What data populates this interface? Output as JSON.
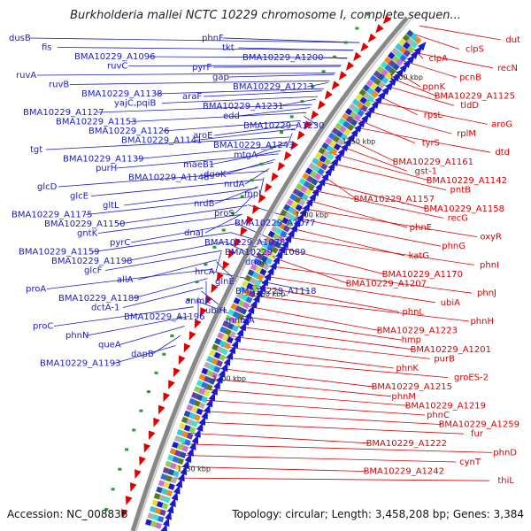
{
  "header": {
    "title": "Burkholderia mallei NCTC 10229 chromosome I, complete sequen..."
  },
  "footer": {
    "accession": "Accession: NC_008836",
    "summary": "Topology: circular; Length: 3,458,208 bp; Genes: 3,384"
  },
  "colors": {
    "left_genes": "#1a1acc",
    "right_genes": "#e00000",
    "ring": "#888888",
    "ticks": "#333333"
  },
  "ticks": [
    "1100 kbp",
    "1150 kbp",
    "1200 kbp",
    "1250 kbp",
    "1300 kbp",
    "1350 kbp"
  ],
  "left_labels": [
    "dusB",
    "fis",
    "BMA10229_A1096",
    "ruvC",
    "ruvA",
    "ruvB",
    "BMA10229_A1138",
    "yajC,pqiB",
    "BMA10229_A1127",
    "BMA10229_A1153",
    "BMA10229_A1126",
    "BMA10229_A1141",
    "tgt",
    "BMA10229_A1139",
    "purH",
    "BMA10229_A1148",
    "glcD",
    "glcE",
    "gltL",
    "BMA10229_A1175",
    "BMA10229_A1150",
    "gntK",
    "pyrC",
    "BMA10229_A1159",
    "BMA10229_A1198",
    "glcF",
    "allA",
    "proA",
    "BMA10229_A1189",
    "dctA-1",
    "BMA10229_A1196",
    "proC",
    "phnN",
    "queA",
    "dapB",
    "BMA10229_A1193",
    "phnF",
    "tkt",
    "BMA10229_A1200",
    "pyrF",
    "gap",
    "BMA10229_A1213",
    "araF",
    "BMA10229_A1231",
    "edd",
    "BMA10229_A1230",
    "aroE",
    "BMA10229_A1243",
    "mtgA",
    "maeB1",
    "dgoK",
    "nrdA",
    "mpl",
    "nrdB",
    "proS",
    "BMA10229_A1077",
    "dnaJ",
    "BMA10229_A1078",
    "BMA10229_A1089",
    "dnaK",
    "hrcA",
    "glnE",
    "BMA10229_A1118",
    "anmK",
    "ubiH",
    "mnmA"
  ],
  "right_labels": [
    "dut",
    "clpS",
    "clpA",
    "recN",
    "pcnB",
    "ppnK",
    "BMA10229_A1125",
    "tldD",
    "rpsL",
    "aroG",
    "rplM",
    "tyrS",
    "dtd",
    "BMA10229_A1161",
    "gst-1",
    "BMA10229_A1142",
    "pntB",
    "BMA10229_A1157",
    "BMA10229_A1158",
    "recG",
    "phnE",
    "oxyR",
    "phnG",
    "katG",
    "phnI",
    "BMA10229_A1170",
    "BMA10229_A1207",
    "phnJ",
    "ubiA",
    "phnL",
    "phnH",
    "BMA10229_A1223",
    "hmp",
    "BMA10229_A1201",
    "purB",
    "phnK",
    "groES-2",
    "BMA10229_A1215",
    "phnM",
    "BMA10229_A1219",
    "phnC",
    "BMA10229_A1259",
    "fur",
    "BMA10229_A1222",
    "phnD",
    "cynT",
    "BMA10229_A1242",
    "thiL"
  ]
}
